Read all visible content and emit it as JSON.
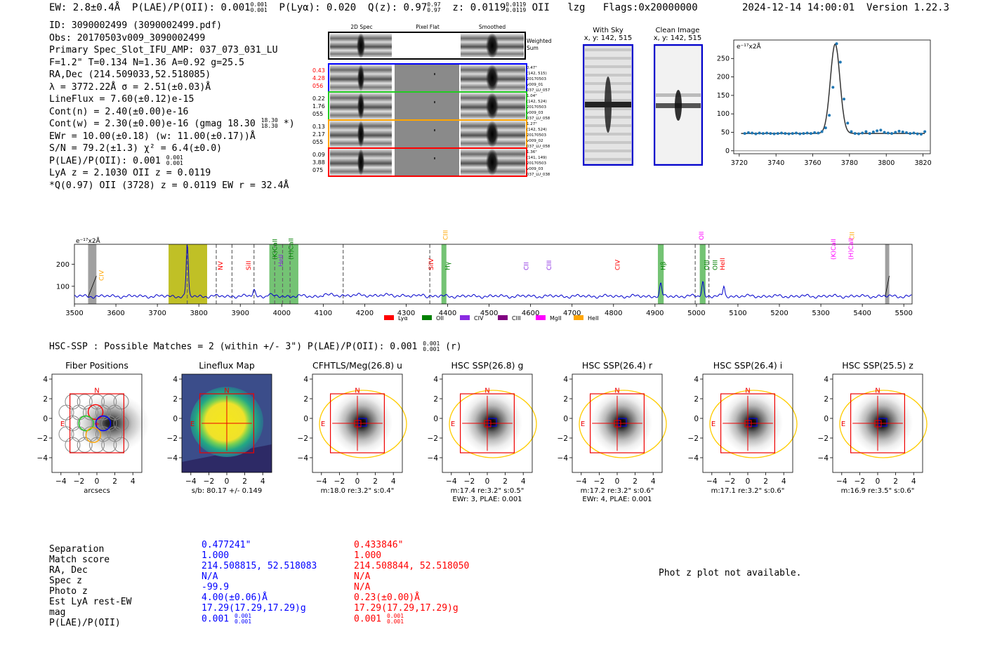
{
  "header": {
    "ew": "EW: 2.8±0.4Å",
    "plae_label": "P(LAE)/P(OII): 0.001",
    "plae_hi": "0.001",
    "plae_lo": "0.001",
    "plya": "P(Lyα): 0.020",
    "qz_label": "Q(z): 0.97",
    "qz_hi": "0.97",
    "qz_lo": "0.97",
    "z_label": "z: 0.0119",
    "z_hi": "0.0119",
    "z_lo": "0.0119",
    "line": "OII",
    "tag": "lzg",
    "flags": "Flags:0x20000000",
    "timestamp": "2024-12-14 14:00:01",
    "version": "Version 1.22.3"
  },
  "info": {
    "id": "ID: 3090002499 (3090002499.pdf)",
    "obs": "Obs: 20170503v009_3090002499",
    "spec": "Primary Spec_Slot_IFU_AMP: 037_073_031_LU",
    "fwhm": "F=1.2\"  T=0.134  N=1.36  A=0.92  g=25.5",
    "radec": "RA,Dec (214.509033,52.518085)",
    "lambda": "λ = 3772.22Å  σ = 2.51(±0.03)Å",
    "lineflux": "LineFlux = 7.60(±0.12)e-15",
    "contn": "Cont(n) = 2.40(±0.00)e-16",
    "contw": "Cont(w) = 2.30(±0.00)e-16 (gmag 18.30",
    "contw_hi": "18.30",
    "contw_lo": "18.30",
    "contw_end": "*)",
    "ewr": "EWr = 10.00(±0.18) (w: 11.00(±0.17))Å",
    "sn": "S/N = 79.2(±1.3)  χ² = 6.4(±0.0)",
    "plae": "P(LAE)/P(OII): 0.001",
    "plae_hi": "0.001",
    "plae_lo": "0.001",
    "lya": "LyA z = 2.1030  OII z = 0.0119",
    "q": "*Q(0.97) OII (3728) z = 0.0119  EW r = 32.4Å"
  },
  "cutouts": {
    "col_labels": [
      "2D Spec",
      "Pixel Flat",
      "Smoothed"
    ],
    "weighted_sum": [
      "Weighted",
      "Sum"
    ],
    "rows": [
      {
        "left": [
          "0.43",
          "4.28",
          "056"
        ],
        "left_color": "#ff0000",
        "right": [
          "0.47\"",
          "(142, 515)",
          "20170503",
          "v009_01",
          "037_LU_057"
        ],
        "border": "#0000ff"
      },
      {
        "left": [
          "0.22",
          "1.76",
          "055"
        ],
        "left_color": "#000000",
        "right": [
          "1.04\"",
          "(142, 524)",
          "20170503",
          "v009_03",
          "037_LU_058"
        ],
        "border": "#22cc22"
      },
      {
        "left": [
          "0.13",
          "2.17",
          "055"
        ],
        "left_color": "#000000",
        "right": [
          "1.27\"",
          "(142, 524)",
          "20170503",
          "v009_02",
          "037_LU_058"
        ],
        "border": "#ffa500"
      },
      {
        "left": [
          "0.09",
          "3.88",
          "075"
        ],
        "left_color": "#000000",
        "right": [
          "1.36\"",
          "(141, 149)",
          "20170503",
          "v009_03",
          "037_LU_038"
        ],
        "border": "#ff0000"
      }
    ],
    "with_sky": [
      "With Sky",
      "x, y: 142, 515"
    ],
    "clean": [
      "Clean Image",
      "x, y: 142, 515"
    ]
  },
  "chart_data": [
    {
      "type": "scatter",
      "title": "",
      "unit_label": "e⁻¹⁷x2Å",
      "xlim": [
        3717,
        3824
      ],
      "ylim": [
        -8,
        300
      ],
      "xticks": [
        "3720",
        "3740",
        "3760",
        "3780",
        "3800",
        "3820"
      ],
      "yticks": [
        "0",
        "50",
        "100",
        "150",
        "200",
        "250"
      ],
      "x": [
        3723,
        3725,
        3727,
        3729,
        3731,
        3733,
        3735,
        3737,
        3739,
        3741,
        3743,
        3745,
        3747,
        3749,
        3751,
        3753,
        3755,
        3757,
        3759,
        3761,
        3763,
        3765,
        3767,
        3769,
        3771,
        3773,
        3775,
        3777,
        3779,
        3781,
        3783,
        3785,
        3787,
        3789,
        3791,
        3793,
        3795,
        3797,
        3799,
        3801,
        3803,
        3805,
        3807,
        3809,
        3811,
        3813,
        3815,
        3817,
        3819,
        3821
      ],
      "y": [
        47,
        49,
        48,
        46,
        48,
        47,
        48,
        47,
        46,
        47,
        48,
        47,
        46,
        47,
        48,
        46,
        47,
        48,
        47,
        49,
        48,
        52,
        62,
        96,
        172,
        290,
        240,
        140,
        75,
        52,
        47,
        46,
        48,
        52,
        47,
        51,
        54,
        56,
        50,
        48,
        47,
        50,
        53,
        51,
        49,
        47,
        48,
        46,
        45,
        52
      ],
      "fit_peak": 3772.2,
      "fit_sigma": 2.6,
      "fit_amp": 242,
      "fit_base": 47
    },
    {
      "type": "line",
      "unit_label": "e⁻¹⁷x2Å",
      "xlim": [
        3500,
        5520
      ],
      "ylim": [
        20,
        290
      ],
      "xticks": [
        "3500",
        "3600",
        "3700",
        "3800",
        "3900",
        "4000",
        "4100",
        "4200",
        "4300",
        "4400",
        "4500",
        "4600",
        "4700",
        "4800",
        "4900",
        "5000",
        "5100",
        "5200",
        "5300",
        "5400",
        "5500"
      ],
      "yticks": [
        "100",
        "200"
      ],
      "baseline": 55,
      "peaks": [
        {
          "x": 3772,
          "amp": 235,
          "w": 2.5
        },
        {
          "x": 3933,
          "amp": 30,
          "w": 3
        },
        {
          "x": 3970,
          "amp": 10,
          "w": 3
        },
        {
          "x": 4102,
          "amp": 8,
          "w": 3
        },
        {
          "x": 4340,
          "amp": 15,
          "w": 3
        },
        {
          "x": 4914,
          "amp": 55,
          "w": 2.5
        },
        {
          "x": 5013,
          "amp": 22,
          "w": 2.5
        },
        {
          "x": 5016,
          "amp": 55,
          "w": 2.2
        },
        {
          "x": 5066,
          "amp": 45,
          "w": 2.2
        }
      ],
      "line_labels": [
        {
          "x": 3565,
          "text": "CIV",
          "color": "#ffa500",
          "y": 340
        },
        {
          "x": 3852,
          "text": "NV",
          "color": "#ff0000",
          "y": 325
        },
        {
          "x": 3920,
          "text": "SiII",
          "color": "#ff0000",
          "y": 325
        },
        {
          "x": 3983,
          "text": "(K)CaII",
          "color": "#008000",
          "y": 310
        },
        {
          "x": 3998,
          "text": "HeII",
          "color": "#8a2be2",
          "y": 320
        },
        {
          "x": 4022,
          "text": "(H)CaII",
          "color": "#008000",
          "y": 310
        },
        {
          "x": 4360,
          "text": "SiIV",
          "color": "#ff0000",
          "y": 325
        },
        {
          "x": 4395,
          "text": "CIII",
          "color": "#ffa500",
          "y": 282
        },
        {
          "x": 4400,
          "text": "Hγ",
          "color": "#008000",
          "y": 325
        },
        {
          "x": 4590,
          "text": "CII",
          "color": "#8a2be2",
          "y": 325
        },
        {
          "x": 4645,
          "text": "CIII",
          "color": "#8a2be2",
          "y": 325
        },
        {
          "x": 4810,
          "text": "CIV",
          "color": "#ff0000",
          "y": 325
        },
        {
          "x": 4920,
          "text": "Hβ",
          "color": "#008000",
          "y": 325
        },
        {
          "x": 5012,
          "text": "OII",
          "color": "#ff00ff",
          "y": 282
        },
        {
          "x": 5025,
          "text": "OIII",
          "color": "#008000",
          "y": 325
        },
        {
          "x": 5063,
          "text": "HeII",
          "color": "#ff0000",
          "y": 325
        },
        {
          "x": 5045,
          "text": "OIII",
          "color": "#008000",
          "y": 325
        },
        {
          "x": 5330,
          "text": "(K)CaII",
          "color": "#ff00ff",
          "y": 310
        },
        {
          "x": 5375,
          "text": "CII",
          "color": "#ffa500",
          "y": 282
        },
        {
          "x": 5373,
          "text": "(H)CaII",
          "color": "#ff00ff",
          "y": 310
        }
      ],
      "legend": [
        {
          "name": "Lyα",
          "color": "#ff0000"
        },
        {
          "name": "OII",
          "color": "#008000"
        },
        {
          "name": "CIV",
          "color": "#8a2be2"
        },
        {
          "name": "CIII",
          "color": "#800080"
        },
        {
          "name": "MgII",
          "color": "#ff00ff"
        },
        {
          "name": "HeII",
          "color": "#ffa500"
        }
      ]
    }
  ],
  "hsc": {
    "title": "HSC-SSP : Possible Matches = 2 (within +/- 3\")  P(LAE)/P(OII): 0.001",
    "hi": "0.001",
    "lo": "0.001",
    "band": "(r)",
    "ticks": [
      "4",
      "2",
      "0",
      "−2",
      "−4"
    ],
    "xticks": [
      "−4",
      "−2",
      "0",
      "2",
      "4"
    ],
    "panels": [
      {
        "title": "Fiber Positions",
        "caption": [
          "arcsecs"
        ]
      },
      {
        "title": "Lineflux Map",
        "caption": [
          "s/b: 80.17 +/- 0.149"
        ]
      },
      {
        "title": "CFHTLS/Meg(26.8) u",
        "caption": [
          "m:18.0  re:3.2\"  s:0.4\""
        ]
      },
      {
        "title": "HSC SSP(26.8) g",
        "caption": [
          "m:17.4  re:3.2\"  s:0.5\"",
          "EWr: 3, PLAE: 0.001"
        ]
      },
      {
        "title": "HSC SSP(26.4) r",
        "caption": [
          "m:17.2  re:3.2\"  s:0.6\"",
          "EWr: 4, PLAE: 0.001"
        ]
      },
      {
        "title": "HSC SSP(26.4) i",
        "caption": [
          "m:17.1  re:3.2\"  s:0.6\""
        ]
      },
      {
        "title": "HSC SSP(25.5) z",
        "caption": [
          "m:16.9  re:3.5\"  s:0.6\""
        ]
      }
    ],
    "n_label": "N",
    "e_label": "E"
  },
  "table": {
    "labels": [
      "Separation",
      "Match score",
      "RA, Dec",
      "Spec z",
      "Photo z",
      "Est LyA rest-EW",
      "mag",
      "P(LAE)/P(OII)"
    ],
    "col1": [
      "0.477241\"",
      "1.000",
      "214.508815, 52.518083",
      "N/A",
      "-99.9",
      "4.00(±0.06)Å",
      "17.29(17.29,17.29)g",
      "0.001"
    ],
    "col1_hi": "0.001",
    "col1_lo": "0.001",
    "col2": [
      "0.433846\"",
      "1.000",
      "214.508844, 52.518050",
      "N/A",
      "N/A",
      "0.23(±0.00)Å",
      "17.29(17.29,17.29)g",
      "0.001"
    ],
    "col2_hi": "0.001",
    "col2_lo": "0.001",
    "photz_msg": "Phot z plot not available."
  }
}
